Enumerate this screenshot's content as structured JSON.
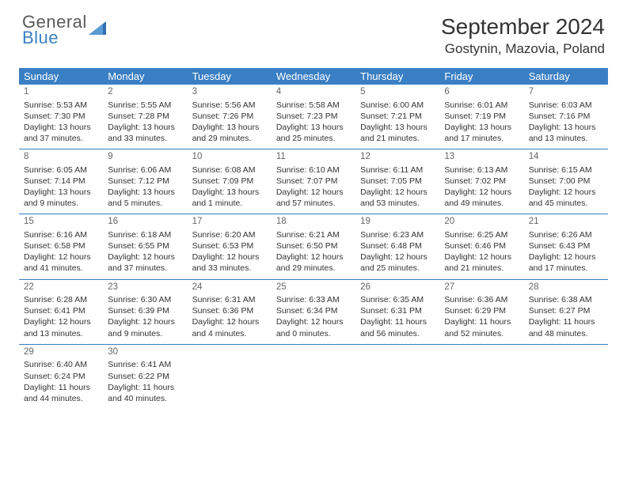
{
  "brand": {
    "line1": "General",
    "line2": "Blue"
  },
  "title": "September 2024",
  "location": "Gostynin, Mazovia, Poland",
  "colors": {
    "accent": "#3a7fc4",
    "text": "#333333",
    "muted": "#666666",
    "background": "#ffffff"
  },
  "weekdays": [
    "Sunday",
    "Monday",
    "Tuesday",
    "Wednesday",
    "Thursday",
    "Friday",
    "Saturday"
  ],
  "weeks": [
    [
      {
        "day": "1",
        "sunrise": "Sunrise: 5:53 AM",
        "sunset": "Sunset: 7:30 PM",
        "dl1": "Daylight: 13 hours",
        "dl2": "and 37 minutes."
      },
      {
        "day": "2",
        "sunrise": "Sunrise: 5:55 AM",
        "sunset": "Sunset: 7:28 PM",
        "dl1": "Daylight: 13 hours",
        "dl2": "and 33 minutes."
      },
      {
        "day": "3",
        "sunrise": "Sunrise: 5:56 AM",
        "sunset": "Sunset: 7:26 PM",
        "dl1": "Daylight: 13 hours",
        "dl2": "and 29 minutes."
      },
      {
        "day": "4",
        "sunrise": "Sunrise: 5:58 AM",
        "sunset": "Sunset: 7:23 PM",
        "dl1": "Daylight: 13 hours",
        "dl2": "and 25 minutes."
      },
      {
        "day": "5",
        "sunrise": "Sunrise: 6:00 AM",
        "sunset": "Sunset: 7:21 PM",
        "dl1": "Daylight: 13 hours",
        "dl2": "and 21 minutes."
      },
      {
        "day": "6",
        "sunrise": "Sunrise: 6:01 AM",
        "sunset": "Sunset: 7:19 PM",
        "dl1": "Daylight: 13 hours",
        "dl2": "and 17 minutes."
      },
      {
        "day": "7",
        "sunrise": "Sunrise: 6:03 AM",
        "sunset": "Sunset: 7:16 PM",
        "dl1": "Daylight: 13 hours",
        "dl2": "and 13 minutes."
      }
    ],
    [
      {
        "day": "8",
        "sunrise": "Sunrise: 6:05 AM",
        "sunset": "Sunset: 7:14 PM",
        "dl1": "Daylight: 13 hours",
        "dl2": "and 9 minutes."
      },
      {
        "day": "9",
        "sunrise": "Sunrise: 6:06 AM",
        "sunset": "Sunset: 7:12 PM",
        "dl1": "Daylight: 13 hours",
        "dl2": "and 5 minutes."
      },
      {
        "day": "10",
        "sunrise": "Sunrise: 6:08 AM",
        "sunset": "Sunset: 7:09 PM",
        "dl1": "Daylight: 13 hours",
        "dl2": "and 1 minute."
      },
      {
        "day": "11",
        "sunrise": "Sunrise: 6:10 AM",
        "sunset": "Sunset: 7:07 PM",
        "dl1": "Daylight: 12 hours",
        "dl2": "and 57 minutes."
      },
      {
        "day": "12",
        "sunrise": "Sunrise: 6:11 AM",
        "sunset": "Sunset: 7:05 PM",
        "dl1": "Daylight: 12 hours",
        "dl2": "and 53 minutes."
      },
      {
        "day": "13",
        "sunrise": "Sunrise: 6:13 AM",
        "sunset": "Sunset: 7:02 PM",
        "dl1": "Daylight: 12 hours",
        "dl2": "and 49 minutes."
      },
      {
        "day": "14",
        "sunrise": "Sunrise: 6:15 AM",
        "sunset": "Sunset: 7:00 PM",
        "dl1": "Daylight: 12 hours",
        "dl2": "and 45 minutes."
      }
    ],
    [
      {
        "day": "15",
        "sunrise": "Sunrise: 6:16 AM",
        "sunset": "Sunset: 6:58 PM",
        "dl1": "Daylight: 12 hours",
        "dl2": "and 41 minutes."
      },
      {
        "day": "16",
        "sunrise": "Sunrise: 6:18 AM",
        "sunset": "Sunset: 6:55 PM",
        "dl1": "Daylight: 12 hours",
        "dl2": "and 37 minutes."
      },
      {
        "day": "17",
        "sunrise": "Sunrise: 6:20 AM",
        "sunset": "Sunset: 6:53 PM",
        "dl1": "Daylight: 12 hours",
        "dl2": "and 33 minutes."
      },
      {
        "day": "18",
        "sunrise": "Sunrise: 6:21 AM",
        "sunset": "Sunset: 6:50 PM",
        "dl1": "Daylight: 12 hours",
        "dl2": "and 29 minutes."
      },
      {
        "day": "19",
        "sunrise": "Sunrise: 6:23 AM",
        "sunset": "Sunset: 6:48 PM",
        "dl1": "Daylight: 12 hours",
        "dl2": "and 25 minutes."
      },
      {
        "day": "20",
        "sunrise": "Sunrise: 6:25 AM",
        "sunset": "Sunset: 6:46 PM",
        "dl1": "Daylight: 12 hours",
        "dl2": "and 21 minutes."
      },
      {
        "day": "21",
        "sunrise": "Sunrise: 6:26 AM",
        "sunset": "Sunset: 6:43 PM",
        "dl1": "Daylight: 12 hours",
        "dl2": "and 17 minutes."
      }
    ],
    [
      {
        "day": "22",
        "sunrise": "Sunrise: 6:28 AM",
        "sunset": "Sunset: 6:41 PM",
        "dl1": "Daylight: 12 hours",
        "dl2": "and 13 minutes."
      },
      {
        "day": "23",
        "sunrise": "Sunrise: 6:30 AM",
        "sunset": "Sunset: 6:39 PM",
        "dl1": "Daylight: 12 hours",
        "dl2": "and 9 minutes."
      },
      {
        "day": "24",
        "sunrise": "Sunrise: 6:31 AM",
        "sunset": "Sunset: 6:36 PM",
        "dl1": "Daylight: 12 hours",
        "dl2": "and 4 minutes."
      },
      {
        "day": "25",
        "sunrise": "Sunrise: 6:33 AM",
        "sunset": "Sunset: 6:34 PM",
        "dl1": "Daylight: 12 hours",
        "dl2": "and 0 minutes."
      },
      {
        "day": "26",
        "sunrise": "Sunrise: 6:35 AM",
        "sunset": "Sunset: 6:31 PM",
        "dl1": "Daylight: 11 hours",
        "dl2": "and 56 minutes."
      },
      {
        "day": "27",
        "sunrise": "Sunrise: 6:36 AM",
        "sunset": "Sunset: 6:29 PM",
        "dl1": "Daylight: 11 hours",
        "dl2": "and 52 minutes."
      },
      {
        "day": "28",
        "sunrise": "Sunrise: 6:38 AM",
        "sunset": "Sunset: 6:27 PM",
        "dl1": "Daylight: 11 hours",
        "dl2": "and 48 minutes."
      }
    ],
    [
      {
        "day": "29",
        "sunrise": "Sunrise: 6:40 AM",
        "sunset": "Sunset: 6:24 PM",
        "dl1": "Daylight: 11 hours",
        "dl2": "and 44 minutes."
      },
      {
        "day": "30",
        "sunrise": "Sunrise: 6:41 AM",
        "sunset": "Sunset: 6:22 PM",
        "dl1": "Daylight: 11 hours",
        "dl2": "and 40 minutes."
      },
      null,
      null,
      null,
      null,
      null
    ]
  ]
}
